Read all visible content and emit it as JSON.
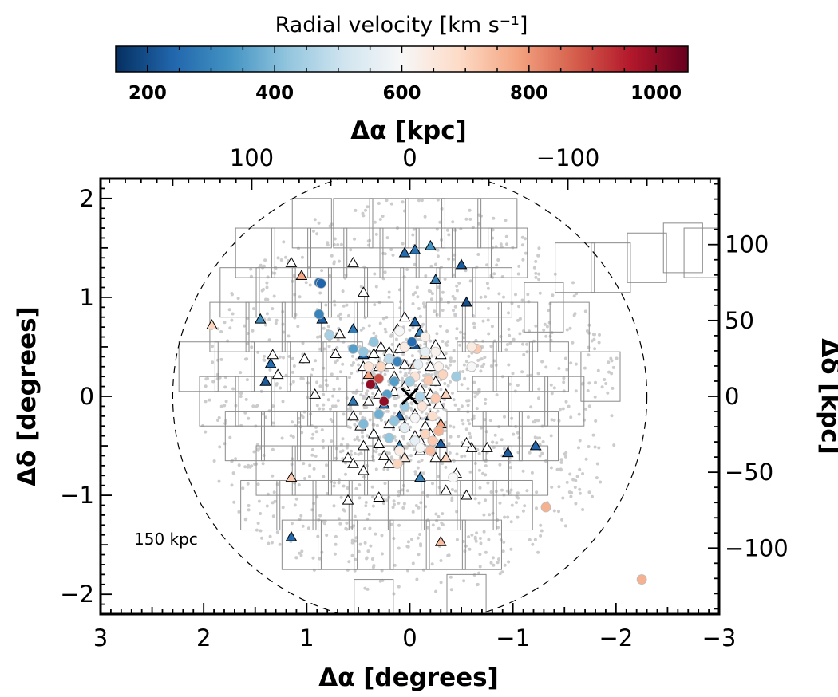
{
  "chart_data": {
    "type": "scatter",
    "colorbar": {
      "title": "Radial velocity [km s⁻¹]",
      "range": [
        150,
        1050
      ],
      "ticks": [
        200,
        400,
        600,
        800,
        1000
      ],
      "colormap": "RdBu_r",
      "colors": [
        "#053061",
        "#2166ac",
        "#4393c3",
        "#92c5de",
        "#d1e5f0",
        "#f7f7f7",
        "#fddbc7",
        "#f4a582",
        "#d6604d",
        "#b2182b",
        "#67001f"
      ]
    },
    "axes": {
      "x_bottom": {
        "label": "Δα [degrees]",
        "range": [
          3,
          -3
        ],
        "ticks": [
          3,
          2,
          1,
          0,
          -1,
          -2,
          -3
        ],
        "tick_labels": [
          "3",
          "2",
          "1",
          "0",
          "−1",
          "−2",
          "−3"
        ]
      },
      "y_left": {
        "label": "Δδ [degrees]",
        "range": [
          -2.2,
          2.2
        ],
        "ticks": [
          -2,
          -1,
          0,
          1,
          2
        ],
        "tick_labels": [
          "−2",
          "−1",
          "0",
          "1",
          "2"
        ]
      },
      "x_top": {
        "label": "Δα [kpc]",
        "ticks_kpc": [
          100,
          0,
          -100
        ],
        "tick_labels": [
          "100",
          "0",
          "−100"
        ]
      },
      "y_right": {
        "label": "Δδ [kpc]",
        "ticks_kpc": [
          100,
          50,
          0,
          -50,
          -100
        ],
        "tick_labels": [
          "100",
          "50",
          "0",
          "−50",
          "−100"
        ]
      }
    },
    "circle": {
      "radius_deg": 2.3,
      "label": "150 kpc"
    },
    "center_marker": {
      "x": 0.0,
      "y": 0.0,
      "symbol": "x"
    },
    "fields": [
      [
        0.95,
        1.75
      ],
      [
        0.55,
        1.75
      ],
      [
        0.2,
        1.75
      ],
      [
        -0.15,
        1.75
      ],
      [
        -0.5,
        1.75
      ],
      [
        -0.85,
        1.75
      ],
      [
        1.5,
        1.45
      ],
      [
        1.15,
        1.45
      ],
      [
        0.8,
        1.45
      ],
      [
        0.45,
        1.45
      ],
      [
        0.1,
        1.45
      ],
      [
        -0.25,
        1.45
      ],
      [
        -0.6,
        1.45
      ],
      [
        -0.95,
        1.45
      ],
      [
        1.65,
        1.05
      ],
      [
        1.3,
        1.05
      ],
      [
        0.95,
        1.05
      ],
      [
        0.6,
        1.05
      ],
      [
        0.25,
        1.05
      ],
      [
        -0.1,
        1.05
      ],
      [
        -0.45,
        1.05
      ],
      [
        -0.8,
        1.05
      ],
      [
        1.75,
        0.7
      ],
      [
        1.4,
        0.7
      ],
      [
        1.05,
        0.7
      ],
      [
        0.7,
        0.7
      ],
      [
        0.35,
        0.7
      ],
      [
        -0.35,
        0.7
      ],
      [
        -0.7,
        0.7
      ],
      [
        -1.05,
        0.7
      ],
      [
        2.05,
        0.3
      ],
      [
        1.7,
        0.3
      ],
      [
        1.35,
        0.3
      ],
      [
        1.0,
        0.3
      ],
      [
        0.65,
        0.3
      ],
      [
        -0.65,
        0.3
      ],
      [
        -1.0,
        0.3
      ],
      [
        -1.35,
        0.3
      ],
      [
        1.85,
        -0.05
      ],
      [
        1.5,
        -0.05
      ],
      [
        1.15,
        -0.05
      ],
      [
        0.8,
        -0.05
      ],
      [
        -0.8,
        -0.05
      ],
      [
        -1.15,
        -0.05
      ],
      [
        -1.5,
        -0.05
      ],
      [
        1.6,
        -0.4
      ],
      [
        1.25,
        -0.4
      ],
      [
        0.9,
        -0.4
      ],
      [
        0.55,
        -0.4
      ],
      [
        -0.55,
        -0.4
      ],
      [
        -0.9,
        -0.4
      ],
      [
        -1.25,
        -0.4
      ],
      [
        1.3,
        -0.75
      ],
      [
        0.95,
        -0.75
      ],
      [
        0.6,
        -0.75
      ],
      [
        0.25,
        -0.75
      ],
      [
        -0.1,
        -0.75
      ],
      [
        -0.45,
        -0.75
      ],
      [
        -0.8,
        -0.75
      ],
      [
        -1.15,
        -0.75
      ],
      [
        1.45,
        -1.1
      ],
      [
        1.1,
        -1.1
      ],
      [
        0.75,
        -1.1
      ],
      [
        0.4,
        -1.1
      ],
      [
        0.05,
        -1.1
      ],
      [
        -0.3,
        -1.1
      ],
      [
        -0.65,
        -1.1
      ],
      [
        -1.0,
        -1.1
      ],
      [
        1.05,
        -1.5
      ],
      [
        0.7,
        -1.5
      ],
      [
        0.35,
        -1.5
      ],
      [
        0.0,
        -1.5
      ],
      [
        -0.35,
        -1.5
      ],
      [
        -0.7,
        -1.5
      ],
      [
        -1.6,
        1.3
      ],
      [
        -1.95,
        1.3
      ],
      [
        -2.3,
        1.4
      ],
      [
        -2.65,
        1.5
      ],
      [
        -2.85,
        1.45
      ],
      [
        -1.3,
        0.9
      ],
      [
        -1.55,
        0.7
      ],
      [
        -1.85,
        0.2
      ],
      [
        0.35,
        -2.1
      ],
      [
        -0.55,
        -2.05
      ]
    ],
    "triangles": [
      {
        "x": 0.05,
        "y": 1.45,
        "v": 250
      },
      {
        "x": -0.05,
        "y": 1.48,
        "v": 260
      },
      {
        "x": -0.2,
        "y": 1.52,
        "v": 330
      },
      {
        "x": 1.15,
        "y": 1.35,
        "v": null
      },
      {
        "x": 1.05,
        "y": 1.22,
        "v": 780
      },
      {
        "x": 0.55,
        "y": 1.35,
        "v": null
      },
      {
        "x": -0.5,
        "y": 1.33,
        "v": 220
      },
      {
        "x": -0.25,
        "y": 1.18,
        "v": 300
      },
      {
        "x": 0.45,
        "y": 1.05,
        "v": null
      },
      {
        "x": 1.92,
        "y": 0.72,
        "v": 700
      },
      {
        "x": 1.45,
        "y": 0.78,
        "v": 320
      },
      {
        "x": 0.85,
        "y": 0.78,
        "v": 230
      },
      {
        "x": 0.55,
        "y": 0.68,
        "v": 280
      },
      {
        "x": 0.05,
        "y": 0.8,
        "v": null
      },
      {
        "x": -0.55,
        "y": 0.95,
        "v": 200
      },
      {
        "x": -0.05,
        "y": 0.75,
        "v": 240
      },
      {
        "x": 0.12,
        "y": 0.68,
        "v": null
      },
      {
        "x": 0.68,
        "y": 0.63,
        "v": null
      },
      {
        "x": -0.1,
        "y": 0.65,
        "v": 300
      },
      {
        "x": 0.72,
        "y": 0.43,
        "v": null
      },
      {
        "x": 1.33,
        "y": 0.42,
        "v": null
      },
      {
        "x": 1.02,
        "y": 0.38,
        "v": null
      },
      {
        "x": -0.25,
        "y": 0.52,
        "v": null
      },
      {
        "x": -0.05,
        "y": 0.52,
        "v": 200
      },
      {
        "x": 0.45,
        "y": 0.42,
        "v": 220
      },
      {
        "x": 0.28,
        "y": 0.5,
        "v": null
      },
      {
        "x": 0.35,
        "y": 0.43,
        "v": null
      },
      {
        "x": 0.2,
        "y": 0.45,
        "v": null
      },
      {
        "x": 0.1,
        "y": 0.48,
        "v": null
      },
      {
        "x": -0.15,
        "y": 0.42,
        "v": 680
      },
      {
        "x": -0.3,
        "y": 0.42,
        "v": null
      },
      {
        "x": 1.35,
        "y": 0.33,
        "v": 250
      },
      {
        "x": 1.28,
        "y": 0.22,
        "v": null
      },
      {
        "x": 1.4,
        "y": 0.15,
        "v": 220
      },
      {
        "x": 0.45,
        "y": 0.3,
        "v": null
      },
      {
        "x": 0.3,
        "y": 0.3,
        "v": null
      },
      {
        "x": 0.2,
        "y": 0.32,
        "v": null
      },
      {
        "x": 0.05,
        "y": 0.32,
        "v": null
      },
      {
        "x": -0.05,
        "y": 0.32,
        "v": 700
      },
      {
        "x": -0.2,
        "y": 0.3,
        "v": null
      },
      {
        "x": 0.4,
        "y": 0.22,
        "v": 780
      },
      {
        "x": 0.15,
        "y": 0.2,
        "v": null
      },
      {
        "x": -0.25,
        "y": 0.15,
        "v": null
      },
      {
        "x": 0.35,
        "y": 0.12,
        "v": 300
      },
      {
        "x": 0.05,
        "y": 0.1,
        "v": null
      },
      {
        "x": -0.1,
        "y": 0.08,
        "v": null
      },
      {
        "x": 0.92,
        "y": 0.02,
        "v": null
      },
      {
        "x": 0.3,
        "y": 0.02,
        "v": null
      },
      {
        "x": 0.15,
        "y": 0.05,
        "v": null
      },
      {
        "x": -0.05,
        "y": 0.02,
        "v": null
      },
      {
        "x": -0.2,
        "y": 0.02,
        "v": null
      },
      {
        "x": -0.35,
        "y": 0.02,
        "v": 700
      },
      {
        "x": 0.55,
        "y": -0.05,
        "v": 280
      },
      {
        "x": 0.4,
        "y": -0.05,
        "v": null
      },
      {
        "x": 0.25,
        "y": -0.08,
        "v": 250
      },
      {
        "x": -0.15,
        "y": -0.05,
        "v": null
      },
      {
        "x": -0.28,
        "y": -0.08,
        "v": null
      },
      {
        "x": 0.55,
        "y": -0.2,
        "v": null
      },
      {
        "x": 0.1,
        "y": -0.2,
        "v": 230
      },
      {
        "x": -0.05,
        "y": -0.18,
        "v": null
      },
      {
        "x": -0.2,
        "y": -0.2,
        "v": 220
      },
      {
        "x": 0.48,
        "y": -0.3,
        "v": null
      },
      {
        "x": 0.2,
        "y": -0.28,
        "v": null
      },
      {
        "x": 0.05,
        "y": -0.3,
        "v": 760
      },
      {
        "x": -0.15,
        "y": -0.3,
        "v": null
      },
      {
        "x": -0.3,
        "y": -0.28,
        "v": 780
      },
      {
        "x": 0.35,
        "y": -0.38,
        "v": null
      },
      {
        "x": -0.05,
        "y": -0.4,
        "v": null
      },
      {
        "x": -0.2,
        "y": -0.38,
        "v": null
      },
      {
        "x": 0.45,
        "y": -0.5,
        "v": null
      },
      {
        "x": 0.3,
        "y": -0.48,
        "v": null
      },
      {
        "x": 0.1,
        "y": -0.5,
        "v": 300
      },
      {
        "x": -0.1,
        "y": -0.45,
        "v": null
      },
      {
        "x": -0.3,
        "y": -0.48,
        "v": 230
      },
      {
        "x": 0.6,
        "y": -0.62,
        "v": null
      },
      {
        "x": 0.25,
        "y": -0.6,
        "v": null
      },
      {
        "x": 0.05,
        "y": -0.62,
        "v": 650
      },
      {
        "x": -0.1,
        "y": -0.55,
        "v": null
      },
      {
        "x": -0.25,
        "y": -0.62,
        "v": null
      },
      {
        "x": 0.55,
        "y": -0.68,
        "v": null
      },
      {
        "x": 0.2,
        "y": -0.68,
        "v": null
      },
      {
        "x": -0.35,
        "y": -0.62,
        "v": 700
      },
      {
        "x": -0.6,
        "y": -0.52,
        "v": null
      },
      {
        "x": -0.95,
        "y": -0.57,
        "v": 220
      },
      {
        "x": -1.22,
        "y": -0.5,
        "v": 240
      },
      {
        "x": -0.75,
        "y": -0.52,
        "v": null
      },
      {
        "x": -0.55,
        "y": -0.47,
        "v": null
      },
      {
        "x": 1.15,
        "y": -0.82,
        "v": 720
      },
      {
        "x": 0.45,
        "y": -0.75,
        "v": null
      },
      {
        "x": -0.1,
        "y": -0.82,
        "v": 300
      },
      {
        "x": -0.45,
        "y": -0.78,
        "v": null
      },
      {
        "x": -0.35,
        "y": -0.95,
        "v": null
      },
      {
        "x": -0.55,
        "y": -1.0,
        "v": null
      },
      {
        "x": 0.6,
        "y": -1.05,
        "v": null
      },
      {
        "x": 0.3,
        "y": -1.02,
        "v": null
      },
      {
        "x": 1.15,
        "y": -1.42,
        "v": 250
      },
      {
        "x": -0.3,
        "y": -1.47,
        "v": 740
      }
    ],
    "circles": [
      {
        "x": 0.88,
        "y": 1.15,
        "v": 250
      },
      {
        "x": 0.86,
        "y": 1.14,
        "v": 240
      },
      {
        "x": 0.88,
        "y": 0.83,
        "v": 300
      },
      {
        "x": 0.78,
        "y": 0.62,
        "v": 450
      },
      {
        "x": 0.55,
        "y": 0.48,
        "v": 350
      },
      {
        "x": 0.35,
        "y": 0.55,
        "v": 420
      },
      {
        "x": 0.1,
        "y": 0.66,
        "v": 600
      },
      {
        "x": 0.05,
        "y": 0.5,
        "v": 640
      },
      {
        "x": -0.02,
        "y": 0.55,
        "v": 250
      },
      {
        "x": -0.15,
        "y": 0.45,
        "v": 560
      },
      {
        "x": -0.25,
        "y": 0.45,
        "v": 620
      },
      {
        "x": -0.65,
        "y": 0.48,
        "v": 720
      },
      {
        "x": 0.45,
        "y": 0.45,
        "v": 420
      },
      {
        "x": 0.2,
        "y": 0.38,
        "v": 480
      },
      {
        "x": 0.28,
        "y": 0.3,
        "v": 700
      },
      {
        "x": 0.12,
        "y": 0.35,
        "v": 300
      },
      {
        "x": -0.08,
        "y": 0.32,
        "v": 560
      },
      {
        "x": -0.28,
        "y": 0.3,
        "v": 620
      },
      {
        "x": -0.6,
        "y": 0.3,
        "v": 600
      },
      {
        "x": 0.4,
        "y": 0.3,
        "v": 660
      },
      {
        "x": 0.3,
        "y": 0.18,
        "v": 900
      },
      {
        "x": 0.15,
        "y": 0.15,
        "v": 350
      },
      {
        "x": -0.05,
        "y": 0.2,
        "v": 660
      },
      {
        "x": -0.18,
        "y": 0.16,
        "v": 720
      },
      {
        "x": -0.32,
        "y": 0.22,
        "v": 700
      },
      {
        "x": -0.45,
        "y": 0.2,
        "v": 440
      },
      {
        "x": 0.38,
        "y": 0.12,
        "v": 1000
      },
      {
        "x": 0.22,
        "y": 0.02,
        "v": 350
      },
      {
        "x": 0.08,
        "y": 0.05,
        "v": 600
      },
      {
        "x": -0.1,
        "y": 0.0,
        "v": 460
      },
      {
        "x": -0.25,
        "y": -0.02,
        "v": 720
      },
      {
        "x": 0.25,
        "y": -0.05,
        "v": 1000
      },
      {
        "x": 0.05,
        "y": -0.1,
        "v": 440
      },
      {
        "x": -0.12,
        "y": -0.1,
        "v": 660
      },
      {
        "x": 0.3,
        "y": -0.18,
        "v": 380
      },
      {
        "x": 0.15,
        "y": -0.25,
        "v": 420
      },
      {
        "x": -0.05,
        "y": -0.22,
        "v": 600
      },
      {
        "x": -0.22,
        "y": -0.2,
        "v": 680
      },
      {
        "x": 0.45,
        "y": -0.28,
        "v": 400
      },
      {
        "x": 0.05,
        "y": -0.32,
        "v": 560
      },
      {
        "x": -0.15,
        "y": -0.38,
        "v": 700
      },
      {
        "x": -0.28,
        "y": -0.35,
        "v": 760
      },
      {
        "x": 0.2,
        "y": -0.42,
        "v": 420
      },
      {
        "x": -0.05,
        "y": -0.45,
        "v": 560
      },
      {
        "x": -0.22,
        "y": -0.45,
        "v": 720
      },
      {
        "x": 0.1,
        "y": -0.55,
        "v": 640
      },
      {
        "x": -0.1,
        "y": -0.52,
        "v": 600
      },
      {
        "x": -0.2,
        "y": -0.55,
        "v": 740
      },
      {
        "x": 0.12,
        "y": -0.68,
        "v": 700
      },
      {
        "x": -0.42,
        "y": -0.82,
        "v": 600
      },
      {
        "x": -1.32,
        "y": -1.12,
        "v": 760
      },
      {
        "x": -2.25,
        "y": -1.85,
        "v": 760
      },
      {
        "x": -0.6,
        "y": 0.5,
        "v": 640
      },
      {
        "x": 0.0,
        "y": 0.15,
        "v": 440
      },
      {
        "x": -0.15,
        "y": 0.6,
        "v": 620
      }
    ],
    "background_members_note": ""
  }
}
